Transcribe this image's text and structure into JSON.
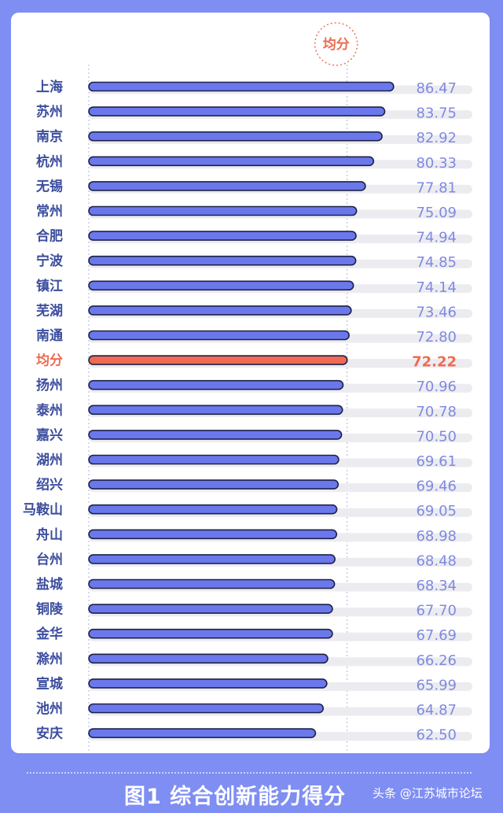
{
  "chart_data": {
    "type": "bar",
    "orientation": "horizontal",
    "categories": [
      "上海",
      "苏州",
      "南京",
      "杭州",
      "无锡",
      "常州",
      "合肥",
      "宁波",
      "镇江",
      "芜湖",
      "南通",
      "均分",
      "扬州",
      "泰州",
      "嘉兴",
      "湖州",
      "绍兴",
      "马鞍山",
      "舟山",
      "台州",
      "盐城",
      "铜陵",
      "金华",
      "滁州",
      "宣城",
      "池州",
      "安庆"
    ],
    "values": [
      86.47,
      83.75,
      82.92,
      80.33,
      77.81,
      75.09,
      74.94,
      74.85,
      74.14,
      73.46,
      72.8,
      72.22,
      70.96,
      70.78,
      70.5,
      69.61,
      69.46,
      69.05,
      68.98,
      68.48,
      68.34,
      67.7,
      67.69,
      66.26,
      65.99,
      64.87,
      62.5
    ],
    "value_labels": [
      "86.47",
      "83.75",
      "82.92",
      "80.33",
      "77.81",
      "75.09",
      "74.94",
      "74.85",
      "74.14",
      "73.46",
      "72.80",
      "72.22",
      "70.96",
      "70.78",
      "70.50",
      "69.61",
      "69.46",
      "69.05",
      "68.98",
      "68.48",
      "68.34",
      "67.70",
      "67.69",
      "66.26",
      "65.99",
      "64.87",
      "62.50"
    ],
    "highlight_category": "均分",
    "average_marker_label": "均分",
    "average_value": 72.22,
    "xlim": [
      0,
      100
    ],
    "grid": false,
    "title": "图1 综合创新能力得分",
    "colors": {
      "bar": "#6b78ec",
      "highlight": "#ef6a52",
      "track": "#ececf0",
      "outline": "#1c2247"
    }
  },
  "footer": {
    "title": "图1 综合创新能力得分",
    "watermark": "头条 @江苏城市论坛"
  }
}
